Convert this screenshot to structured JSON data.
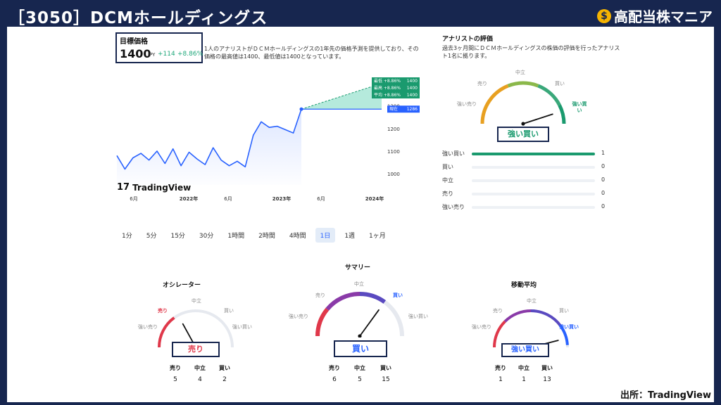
{
  "header": {
    "title": "［3050］DCMホールディングス",
    "brand": "高配当株マニア",
    "brand_icon": "money-bag-icon"
  },
  "credit": "出所：TradingView",
  "target": {
    "label": "目標価格",
    "value": "1400",
    "currency": "JPY",
    "change": "+114",
    "change_pct": "+8.86%"
  },
  "description": "1人のアナリストがＤＣＭホールディングスの1年先の価格予測を提供しており、その価格の最高値は1400、最低値は1400となっています。",
  "forecast_labels": [
    {
      "name": "最低 +8.86%",
      "value": "1400"
    },
    {
      "name": "最高 +8.86%",
      "value": "1400"
    },
    {
      "name": "平均 +8.86%",
      "value": "1400"
    }
  ],
  "current_tag": {
    "name": "現在",
    "value": "1286"
  },
  "chart_data": {
    "type": "line",
    "x": [
      "2021-06",
      "2021-07",
      "2021-08",
      "2021-09",
      "2021-10",
      "2021-11",
      "2021-12",
      "2022-01",
      "2022-02",
      "2022-03",
      "2022-04",
      "2022-05",
      "2022-06",
      "2022-07",
      "2022-08",
      "2022-09",
      "2022-10",
      "2022-11",
      "2022-12",
      "2023-01",
      "2023-02",
      "2023-03",
      "2023-04",
      "2023-05"
    ],
    "values": [
      1080,
      1020,
      1070,
      1090,
      1060,
      1100,
      1045,
      1110,
      1035,
      1095,
      1065,
      1040,
      1115,
      1060,
      1035,
      1055,
      1030,
      1170,
      1230,
      1205,
      1210,
      1195,
      1180,
      1286
    ],
    "forecast": {
      "from": "2023-05",
      "to": "2024-05",
      "high": 1400,
      "avg": 1400,
      "low": 1400
    },
    "yticks": [
      "1300",
      "1200",
      "1100",
      "1000"
    ],
    "xticks": [
      "6月",
      "2022年",
      "6月",
      "2023年",
      "6月",
      "2024年"
    ],
    "ylim": [
      950,
      1480
    ]
  },
  "tv_logo": "TradingView",
  "intervals": [
    "1分",
    "5分",
    "15分",
    "30分",
    "1時間",
    "2時間",
    "4時間",
    "1日",
    "1週",
    "1ヶ月"
  ],
  "active_interval": "1日",
  "analyst": {
    "title": "アナリストの評価",
    "desc": "過去3ヶ月間にＤＣＭホールディングスの株価の評価を行ったアナリスト1名に拠ります。",
    "gauge_labels": {
      "strong_sell": "強い売り",
      "sell": "売り",
      "neutral": "中立",
      "buy": "買い",
      "strong_buy": "強い買い"
    },
    "result": "強い買い",
    "distribution": [
      {
        "label": "強い買い",
        "count": 1,
        "max": 1
      },
      {
        "label": "買い",
        "count": 0,
        "max": 1
      },
      {
        "label": "中立",
        "count": 0,
        "max": 1
      },
      {
        "label": "売り",
        "count": 0,
        "max": 1
      },
      {
        "label": "強い売り",
        "count": 0,
        "max": 1
      }
    ]
  },
  "gauges": {
    "oscillator": {
      "title": "オシレーター",
      "result": "売り",
      "sell": 5,
      "neutral": 4,
      "buy": 2
    },
    "summary": {
      "title": "サマリー",
      "result": "買い",
      "sell": 6,
      "neutral": 5,
      "buy": 15
    },
    "moving_avg": {
      "title": "移動平均",
      "result": "強い買い",
      "sell": 1,
      "neutral": 1,
      "buy": 13
    },
    "labels": {
      "strong_sell": "強い売り",
      "sell": "売り",
      "neutral": "中立",
      "buy": "買い",
      "strong_buy": "強い買い"
    },
    "count_labels": {
      "sell": "売り",
      "neutral": "中立",
      "buy": "買い"
    }
  },
  "colors": {
    "navy": "#17264f",
    "green": "#1a9a6e",
    "red": "#e0384a",
    "blue": "#2962ff",
    "purple": "#8a3aa8"
  }
}
